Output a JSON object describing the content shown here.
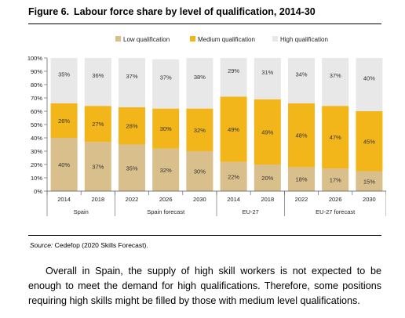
{
  "figure": {
    "number": "Figure 6.",
    "title": "Labour force share by level of qualification, 2014-30"
  },
  "source": {
    "label": "Source:",
    "text": " Cedefop (2020 Skills Forecast)."
  },
  "paragraph": "Overall in Spain, the supply of high skill workers is not expected to be enough to meet the demand for high qualifications. Therefore, some positions requiring high skills might be filled by those with medium level qualifications.",
  "chart_data": {
    "type": "bar",
    "stacked": true,
    "categories": [
      "2014",
      "2018",
      "2022",
      "2026",
      "2030",
      "2014",
      "2018",
      "2022",
      "2026",
      "2030"
    ],
    "groups": [
      {
        "label": "Spain",
        "start": 0,
        "end": 1
      },
      {
        "label": "Spain forecast",
        "start": 2,
        "end": 4
      },
      {
        "label": "EU-27",
        "start": 5,
        "end": 6
      },
      {
        "label": "EU-27 forecast",
        "start": 7,
        "end": 9
      }
    ],
    "series": [
      {
        "name": "Low qualification",
        "color": "#d9bf8c",
        "values": [
          40,
          37,
          35,
          32,
          30,
          22,
          20,
          18,
          17,
          15
        ]
      },
      {
        "name": "Medium qualification",
        "color": "#f2b61b",
        "values": [
          26,
          27,
          28,
          30,
          32,
          49,
          49,
          48,
          47,
          45
        ]
      },
      {
        "name": "High qualification",
        "color": "#e8e8e8",
        "values": [
          35,
          36,
          37,
          37,
          38,
          29,
          31,
          34,
          37,
          40
        ]
      }
    ],
    "data_labels": [
      [
        "40%",
        "37%",
        "35%",
        "32%",
        "30%",
        "22%",
        "20%",
        "18%",
        "17%",
        "15%"
      ],
      [
        "26%",
        "27%",
        "28%",
        "30%",
        "32%",
        "49%",
        "49%",
        "48%",
        "47%",
        "45%"
      ],
      [
        "35%",
        "36%",
        "37%",
        "37%",
        "38%",
        "29%",
        "31%",
        "34%",
        "37%",
        "40%"
      ]
    ],
    "y_ticks": [
      "0%",
      "10%",
      "20%",
      "30%",
      "40%",
      "50%",
      "60%",
      "70%",
      "80%",
      "90%",
      "100%"
    ],
    "ylim": [
      0,
      100
    ],
    "grid": false,
    "legend": "top",
    "colors": {
      "background": "#ffffff",
      "axis": "#555555"
    }
  }
}
